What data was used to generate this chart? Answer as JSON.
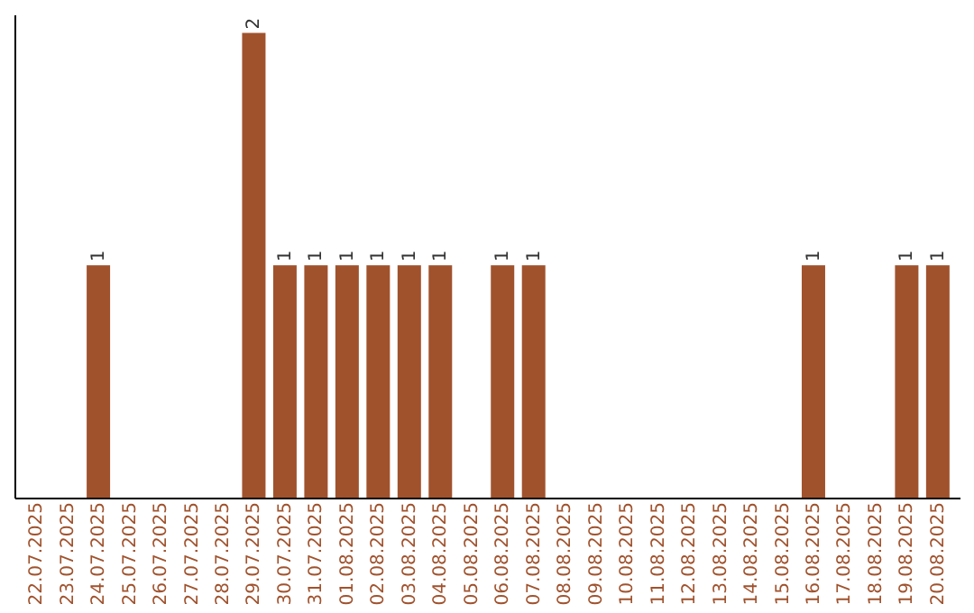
{
  "chart_data": {
    "type": "bar",
    "color": "#a0522d",
    "categories": [
      "22.07.2025",
      "23.07.2025",
      "24.07.2025",
      "25.07.2025",
      "26.07.2025",
      "27.07.2025",
      "28.07.2025",
      "29.07.2025",
      "30.07.2025",
      "31.07.2025",
      "01.08.2025",
      "02.08.2025",
      "03.08.2025",
      "04.08.2025",
      "05.08.2025",
      "06.08.2025",
      "07.08.2025",
      "08.08.2025",
      "09.08.2025",
      "10.08.2025",
      "11.08.2025",
      "12.08.2025",
      "13.08.2025",
      "14.08.2025",
      "15.08.2025",
      "16.08.2025",
      "17.08.2025",
      "18.08.2025",
      "19.08.2025",
      "20.08.2025"
    ],
    "values": [
      0,
      0,
      1,
      0,
      0,
      0,
      0,
      2,
      1,
      1,
      1,
      1,
      1,
      1,
      0,
      1,
      1,
      0,
      0,
      0,
      0,
      0,
      0,
      0,
      0,
      1,
      0,
      0,
      1,
      1
    ],
    "value_labels": [
      null,
      null,
      "1",
      null,
      null,
      null,
      null,
      "2",
      "1",
      "1",
      "1",
      "1",
      "1",
      "1",
      null,
      "1",
      "1",
      null,
      null,
      null,
      null,
      null,
      null,
      null,
      null,
      "1",
      null,
      null,
      "1",
      "1"
    ],
    "grid": false
  }
}
